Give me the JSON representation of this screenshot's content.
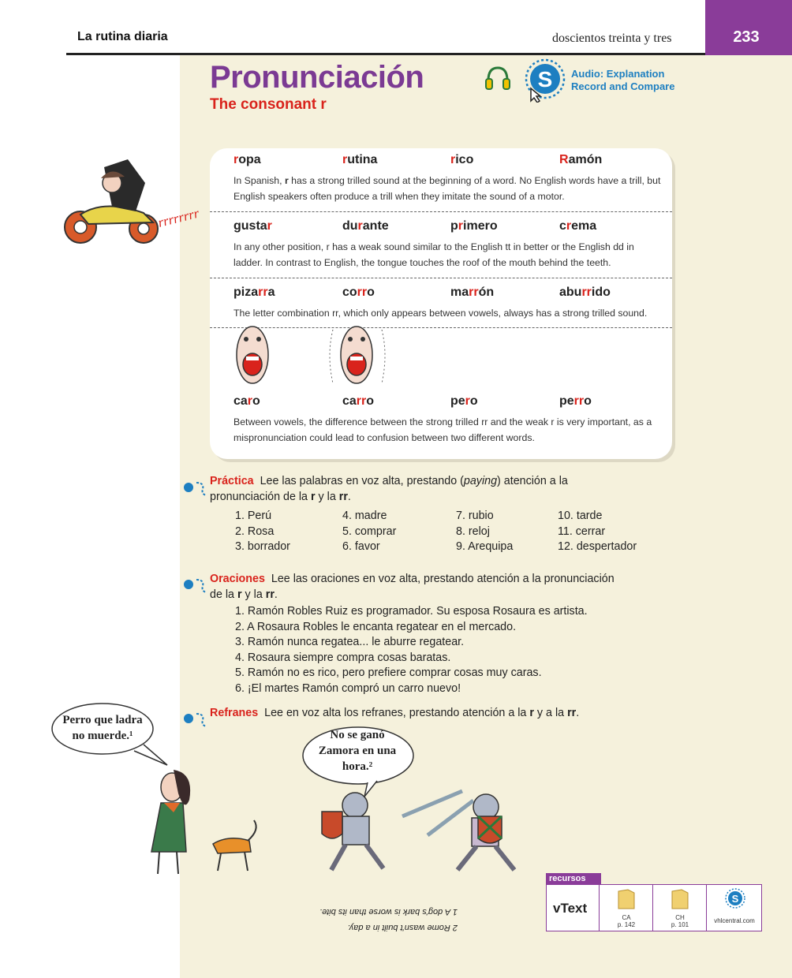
{
  "header": {
    "chapter": "La rutina diaria",
    "page_words": "doscientos treinta y tres",
    "page_number": "233"
  },
  "title": "Pronunciación",
  "subtitle": "The consonant r",
  "audio": {
    "line1": "Audio: Explanation",
    "line2": "Record and Compare",
    "icon": "supersite-s-icon"
  },
  "rows": [
    {
      "words": [
        [
          "",
          "r",
          "opa"
        ],
        [
          "",
          "r",
          "utina"
        ],
        [
          "",
          "r",
          "ico"
        ],
        [
          "",
          "R",
          "amón"
        ]
      ],
      "expl": [
        "In Spanish, ",
        {
          "b": "r"
        },
        " has a strong trilled sound at the beginning of a word. No English words have a trill, but English speakers often produce a trill when they imitate the sound of a motor."
      ]
    },
    {
      "words": [
        [
          "gusta",
          "r",
          ""
        ],
        [
          "du",
          "r",
          "ante"
        ],
        [
          "p",
          "r",
          "imero"
        ],
        [
          "c",
          "r",
          "ema"
        ]
      ],
      "expl_text": "In any other position, r has a weak sound similar to the English tt in better or the English dd in ladder. In contrast to English, the tongue touches the roof of the mouth behind the teeth."
    },
    {
      "words": [
        [
          "piza",
          "rr",
          "a"
        ],
        [
          "co",
          "rr",
          "o"
        ],
        [
          "ma",
          "rr",
          "ón"
        ],
        [
          "abu",
          "rr",
          "ido"
        ]
      ],
      "expl_text": "The letter combination rr, which only appears between vowels, always has a strong trilled sound."
    },
    {
      "words": [
        [
          "ca",
          "r",
          "o"
        ],
        [
          "ca",
          "rr",
          "o"
        ],
        [
          "pe",
          "r",
          "o"
        ],
        [
          "pe",
          "rr",
          "o"
        ]
      ],
      "expl_text": "Between vowels, the difference between the strong trilled rr and the weak r is very important, as a mispronunciation could lead to confusion between two different words."
    }
  ],
  "practica": {
    "label": "Práctica",
    "instr_a": "Lee las palabras en voz alta, prestando (",
    "instr_paying": "paying",
    "instr_b": ") atención a la",
    "instr_c": "pronunciación de la ",
    "instr_r": "r",
    "instr_y": " y la ",
    "instr_rr": "rr",
    "instr_end": ".",
    "items": [
      "1. Perú",
      "2. Rosa",
      "3. borrador",
      "4. madre",
      "5. comprar",
      "6. favor",
      "7. rubio",
      "8. reloj",
      "9. Arequipa",
      "10. tarde",
      "11. cerrar",
      "12. despertador"
    ]
  },
  "oraciones": {
    "label": "Oraciones",
    "instr_a": "Lee las oraciones en voz alta, prestando atención a la pronunciación",
    "instr_b": "de la ",
    "instr_r": "r",
    "instr_y": " y la ",
    "instr_rr": "rr",
    "instr_end": ".",
    "items": [
      "1. Ramón Robles Ruiz es programador. Su esposa Rosaura es artista.",
      "2. A Rosaura Robles le encanta regatear en el mercado.",
      "3. Ramón nunca regatea... le aburre regatear.",
      "4. Rosaura siempre compra cosas baratas.",
      "5. Ramón no es rico, pero prefiere comprar cosas muy caras.",
      "6. ¡El martes Ramón compró un carro nuevo!"
    ]
  },
  "refranes": {
    "label": "Refranes",
    "instr_a": "Lee en voz alta los refranes, prestando atención a la ",
    "instr_r": "r",
    "instr_y": " y a la ",
    "instr_rr": "rr",
    "instr_end": ".",
    "bubble1_l1": "Perro que ladra",
    "bubble1_l2": "no muerde.¹",
    "bubble2_l1": "No se ganó",
    "bubble2_l2": "Zamora en una",
    "bubble2_l3": "hora.²"
  },
  "motor_sound": "rrrrrrrr",
  "recursos": {
    "label": "recursos",
    "vtext": "vText",
    "ca": "CA",
    "ca_page": "p. 142",
    "ch": "CH",
    "ch_page": "p. 101",
    "site": "vhlcentral.com"
  },
  "footnotes": {
    "f1": "1 A dog's bark is worse than its bite.",
    "f2": "2 Rome wasn't built in a day."
  },
  "colors": {
    "purple": "#7b3a93",
    "red": "#d9231c",
    "blue": "#1d7fc1",
    "cream": "#f5f1dc"
  }
}
